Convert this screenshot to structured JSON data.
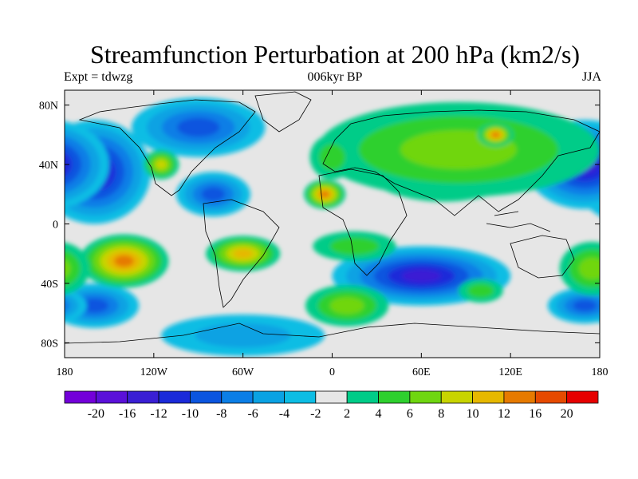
{
  "header": {
    "title": "Streamfunction Perturbation at 200 hPa (km2/s)",
    "left_label": "Expt = tdwzg",
    "center_label": "006kyr BP",
    "right_label": "JJA"
  },
  "axes": {
    "x_ticks": [
      "180",
      "120W",
      "60W",
      "0",
      "60E",
      "120E",
      "180"
    ],
    "x_values": [
      -180,
      -120,
      -60,
      0,
      60,
      120,
      180
    ],
    "y_ticks": [
      "80N",
      "40N",
      "0",
      "40S",
      "80S"
    ],
    "y_values": [
      80,
      40,
      0,
      -40,
      -80
    ],
    "lon_range": [
      -180,
      180
    ],
    "lat_range": [
      -90,
      90
    ]
  },
  "colorbar": {
    "labels": [
      "-20",
      "-16",
      "-12",
      "-10",
      "-8",
      "-6",
      "-4",
      "-2",
      "2",
      "4",
      "6",
      "8",
      "10",
      "12",
      "16",
      "20"
    ],
    "colors": [
      "#7300d9",
      "#5a10d9",
      "#3a1fd4",
      "#1a2ad9",
      "#0b55df",
      "#0b7ee6",
      "#0aa2e3",
      "#0dbde4",
      "#e6e6e6",
      "#00cc88",
      "#2ed02e",
      "#6fd610",
      "#c8d400",
      "#e6b800",
      "#e67a00",
      "#e64a00",
      "#e60000"
    ]
  },
  "blobs": [
    {
      "lon": -160,
      "lat": 35,
      "value": -14,
      "rlon": 38,
      "rlat": 35
    },
    {
      "lon": -160,
      "lat": -55,
      "value": -8,
      "rlon": 30,
      "rlat": 15
    },
    {
      "lon": -90,
      "lat": 65,
      "value": -9,
      "rlon": 45,
      "rlat": 20
    },
    {
      "lon": -80,
      "lat": 20,
      "value": -8,
      "rlon": 25,
      "rlat": 15
    },
    {
      "lon": -115,
      "lat": 40,
      "value": 8,
      "rlon": 12,
      "rlat": 10
    },
    {
      "lon": 60,
      "lat": -35,
      "value": -12,
      "rlon": 60,
      "rlat": 20
    },
    {
      "lon": 170,
      "lat": 40,
      "value": -14,
      "rlon": 40,
      "rlat": 30
    },
    {
      "lon": 170,
      "lat": -55,
      "value": -8,
      "rlon": 25,
      "rlat": 12
    },
    {
      "lon": 75,
      "lat": 40,
      "value": 16,
      "rlon": 55,
      "rlat": 25
    },
    {
      "lon": 85,
      "lat": 50,
      "value": 6,
      "rlon": 95,
      "rlat": 32
    },
    {
      "lon": 110,
      "lat": 60,
      "value": 12,
      "rlon": 12,
      "rlat": 8
    },
    {
      "lon": -5,
      "lat": 20,
      "value": 12,
      "rlon": 14,
      "rlat": 10
    },
    {
      "lon": -140,
      "lat": -25,
      "value": 12,
      "rlon": 30,
      "rlat": 18
    },
    {
      "lon": -60,
      "lat": -20,
      "value": 10,
      "rlon": 25,
      "rlat": 12
    },
    {
      "lon": -60,
      "lat": -75,
      "value": -4,
      "rlon": 55,
      "rlat": 14
    },
    {
      "lon": 10,
      "lat": -55,
      "value": 6,
      "rlon": 28,
      "rlat": 14
    },
    {
      "lon": 175,
      "lat": -30,
      "value": 6,
      "rlon": 22,
      "rlat": 18
    },
    {
      "lon": 100,
      "lat": -45,
      "value": 4,
      "rlon": 15,
      "rlat": 8
    },
    {
      "lon": 15,
      "lat": -15,
      "value": 4,
      "rlon": 28,
      "rlat": 10
    },
    {
      "lon": 0,
      "lat": 45,
      "value": 4,
      "rlon": 15,
      "rlat": 15
    }
  ]
}
